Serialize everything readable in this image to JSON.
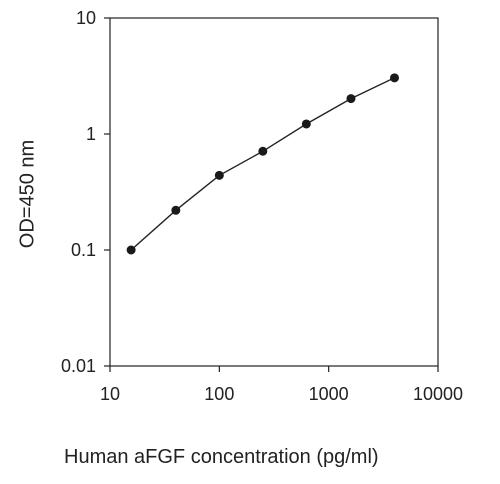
{
  "chart_data": {
    "type": "scatter",
    "title": "",
    "xlabel": "Human aFGF concentration (pg/ml)",
    "ylabel": "OD=450 nm",
    "xscale": "log",
    "yscale": "log",
    "xlim": [
      10,
      10000
    ],
    "ylim": [
      0.01,
      10
    ],
    "xticks": [
      10,
      100,
      1000,
      10000
    ],
    "xtick_labels": [
      "10",
      "100",
      "1000",
      "10000"
    ],
    "yticks": [
      0.01,
      0.1,
      1,
      10
    ],
    "ytick_labels": [
      "0.01",
      "0.1",
      "1",
      "10"
    ],
    "grid": false,
    "legend": "none",
    "connect_points": true,
    "series": [
      {
        "x": [
          15.6,
          40,
          100,
          250,
          625,
          1600,
          4000
        ],
        "y": [
          0.1,
          0.22,
          0.44,
          0.71,
          1.22,
          2.02,
          3.05
        ]
      }
    ],
    "colors": {
      "line": "#222222",
      "marker": "#1a1a1a",
      "axis": "#222222",
      "text": "#222222"
    }
  }
}
